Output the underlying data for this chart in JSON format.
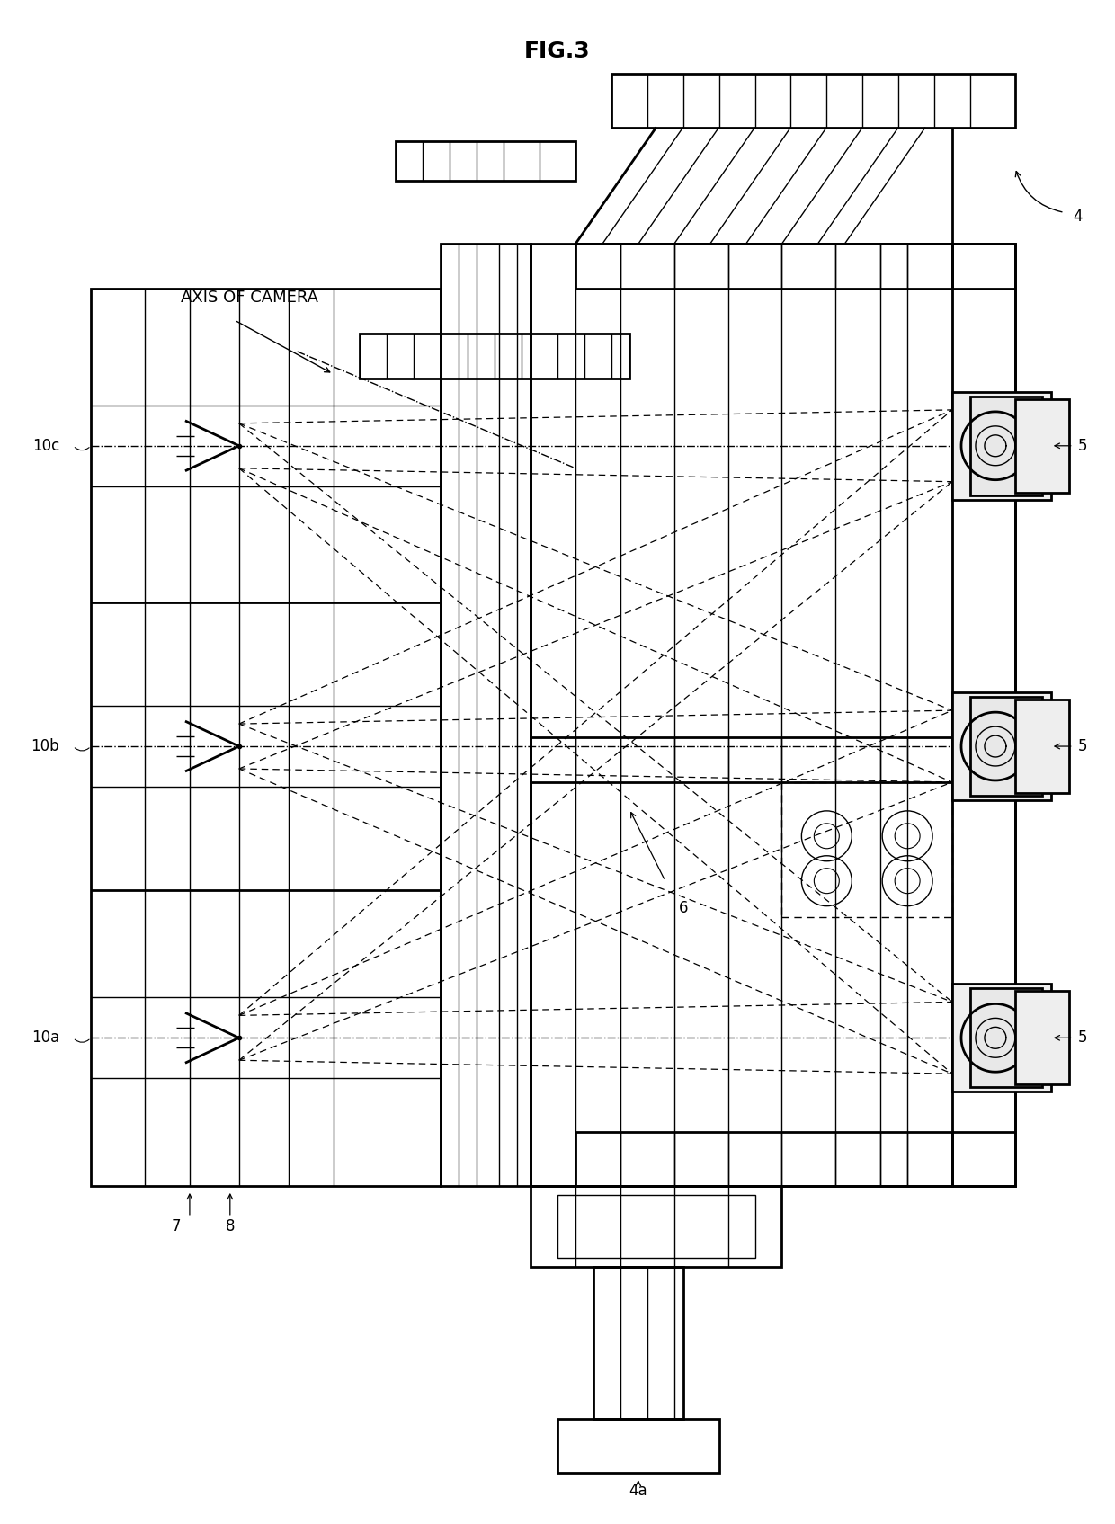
{
  "title": "FIG.3",
  "bg_color": "#ffffff",
  "fig_width": 12.4,
  "fig_height": 16.95,
  "labels": {
    "axis_of_camera": "AXIS OF CAMERA",
    "10c": "10c",
    "10b": "10b",
    "10a": "10a",
    "4": "4",
    "4a": "4a",
    "5": "5",
    "6": "6",
    "7": "7",
    "8": "8"
  }
}
